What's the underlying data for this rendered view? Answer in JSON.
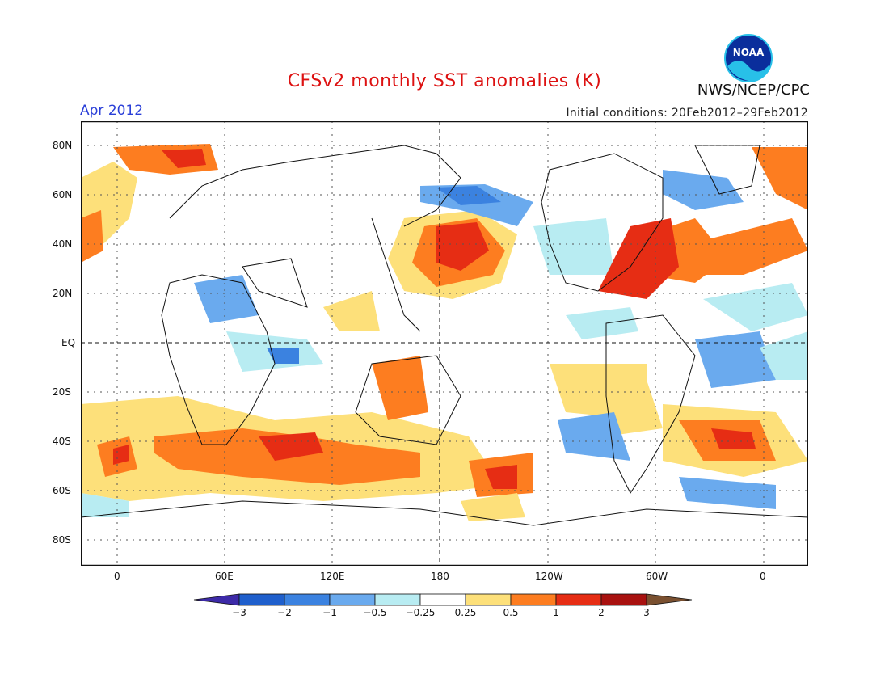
{
  "header": {
    "title": "CFSv2 monthly SST anomalies (K)",
    "month": "Apr 2012",
    "initial_conditions": "Initial conditions: 20Feb2012–29Feb2012",
    "agency": "NWS/NCEP/CPC",
    "logo_text": "NOAA",
    "logo_icon": "noaa-logo-icon"
  },
  "map": {
    "lat_labels": [
      "80N",
      "60N",
      "40N",
      "20N",
      "EQ",
      "20S",
      "40S",
      "60S",
      "80S"
    ],
    "lon_labels": [
      "0",
      "60E",
      "120E",
      "180",
      "120W",
      "60W",
      "0"
    ],
    "grid": "dotted",
    "reference_lines": [
      "EQ",
      "180"
    ]
  },
  "legend": {
    "labels": [
      "−3",
      "−2",
      "−1",
      "−0.5",
      "−0.25",
      "0.25",
      "0.5",
      "1",
      "2",
      "3"
    ],
    "colors": [
      "#3d2aa8",
      "#1f5fcc",
      "#3b82e0",
      "#6aaaee",
      "#b8ecf2",
      "#ffffff",
      "#fde07a",
      "#fd7d20",
      "#e62d14",
      "#a8110f",
      "#7a5030"
    ]
  }
}
